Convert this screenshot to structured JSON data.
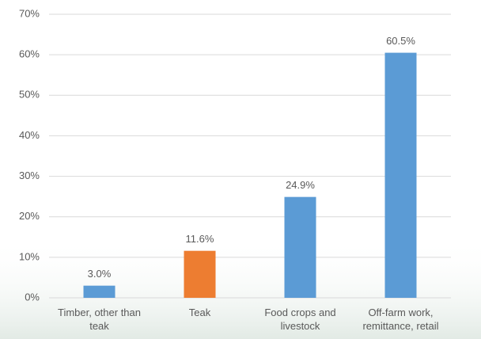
{
  "chart_data": {
    "type": "bar",
    "categories": [
      "Timber, other than teak",
      "Teak",
      "Food crops and livestock",
      "Off-farm work, remittance, retail"
    ],
    "values": [
      3.0,
      11.6,
      24.9,
      60.5
    ],
    "value_labels": [
      "3.0%",
      "11.6%",
      "24.9%",
      "60.5%"
    ],
    "colors": [
      "#5b9bd5",
      "#ed7d31",
      "#5b9bd5",
      "#5b9bd5"
    ],
    "ylim": [
      0,
      70
    ],
    "yticks": [
      {
        "value": 0,
        "label": "0%"
      },
      {
        "value": 10,
        "label": "10%"
      },
      {
        "value": 20,
        "label": "20%"
      },
      {
        "value": 30,
        "label": "30%"
      },
      {
        "value": 40,
        "label": "40%"
      },
      {
        "value": 50,
        "label": "50%"
      },
      {
        "value": 60,
        "label": "60%"
      },
      {
        "value": 70,
        "label": "70%"
      }
    ],
    "grid": true
  }
}
